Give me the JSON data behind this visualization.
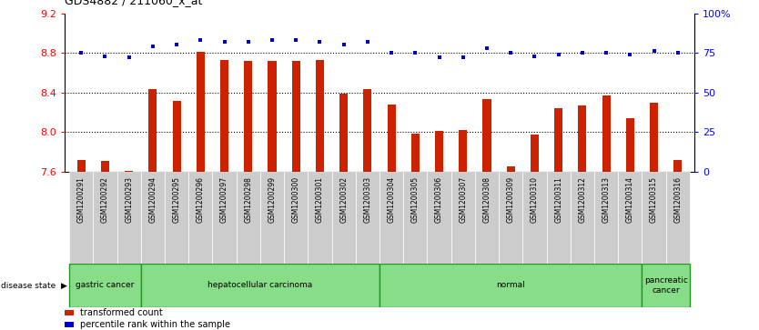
{
  "title": "GDS4882 / 211060_x_at",
  "samples": [
    "GSM1200291",
    "GSM1200292",
    "GSM1200293",
    "GSM1200294",
    "GSM1200295",
    "GSM1200296",
    "GSM1200297",
    "GSM1200298",
    "GSM1200299",
    "GSM1200300",
    "GSM1200301",
    "GSM1200302",
    "GSM1200303",
    "GSM1200304",
    "GSM1200305",
    "GSM1200306",
    "GSM1200307",
    "GSM1200308",
    "GSM1200309",
    "GSM1200310",
    "GSM1200311",
    "GSM1200312",
    "GSM1200313",
    "GSM1200314",
    "GSM1200315",
    "GSM1200316"
  ],
  "bar_values": [
    7.72,
    7.71,
    7.61,
    8.43,
    8.31,
    8.81,
    8.73,
    8.72,
    8.72,
    8.72,
    8.73,
    8.39,
    8.43,
    8.28,
    7.98,
    8.01,
    8.02,
    8.33,
    7.65,
    7.97,
    8.24,
    8.27,
    8.37,
    8.14,
    8.3,
    7.72
  ],
  "percentile_values": [
    75,
    73,
    72,
    79,
    80,
    83,
    82,
    82,
    83,
    83,
    82,
    80,
    82,
    75,
    75,
    72,
    72,
    78,
    75,
    73,
    74,
    75,
    75,
    74,
    76,
    75
  ],
  "bar_color": "#cc2200",
  "dot_color": "#0000cc",
  "ymin": 7.6,
  "ymax": 9.2,
  "ylim_right": [
    0,
    100
  ],
  "yticks_left": [
    7.6,
    8.0,
    8.4,
    8.8,
    9.2
  ],
  "yticks_right": [
    0,
    25,
    50,
    75,
    100
  ],
  "disease_groups": [
    {
      "label": "gastric cancer",
      "start": 0,
      "end": 2
    },
    {
      "label": "hepatocellular carcinoma",
      "start": 3,
      "end": 12
    },
    {
      "label": "normal",
      "start": 13,
      "end": 23
    },
    {
      "label": "pancreatic\ncancer",
      "start": 24,
      "end": 25
    }
  ],
  "disease_group_color": "#88dd88",
  "disease_group_border": "#229922",
  "sample_bg_color": "#cccccc",
  "background_color": "#ffffff",
  "bar_width": 0.35,
  "legend_items": [
    {
      "color": "#cc2200",
      "label": "transformed count"
    },
    {
      "color": "#0000cc",
      "label": "percentile rank within the sample"
    }
  ]
}
